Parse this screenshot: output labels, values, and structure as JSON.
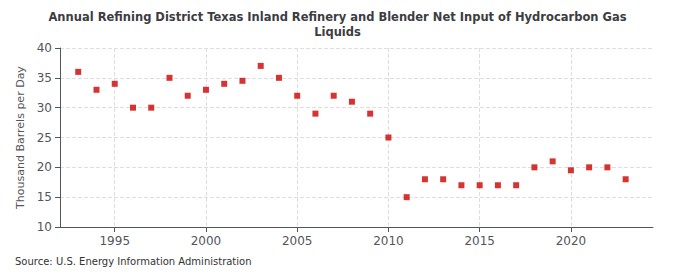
{
  "chart_data": {
    "type": "scatter",
    "title": "Annual Refining District Texas Inland Refinery and Blender Net Input of Hydrocarbon Gas\nLiquids",
    "ylabel": "Thousand Barrels per Day",
    "source": "Source: U.S. Energy Information Administration",
    "x": [
      1993,
      1994,
      1995,
      1996,
      1997,
      1998,
      1999,
      2000,
      2001,
      2002,
      2003,
      2004,
      2005,
      2006,
      2007,
      2008,
      2009,
      2010,
      2011,
      2012,
      2013,
      2014,
      2015,
      2016,
      2017,
      2018,
      2019,
      2020,
      2021,
      2022,
      2023
    ],
    "values": [
      36.0,
      33.0,
      34.0,
      30.0,
      30.0,
      35.0,
      32.0,
      33.0,
      34.0,
      34.5,
      37.0,
      35.0,
      32.0,
      29.0,
      32.0,
      31.0,
      29.0,
      25.0,
      15.0,
      18.0,
      18.0,
      17.0,
      17.0,
      17.0,
      17.0,
      20.0,
      21.0,
      19.5,
      20.0,
      20.0,
      18.0
    ],
    "color": "#cc0000",
    "marker": "square",
    "xlim": [
      1992.0,
      2024.5
    ],
    "xticks": [
      1995,
      2000,
      2005,
      2010,
      2015,
      2020
    ],
    "ylim": [
      10,
      40
    ],
    "yticks": [
      10,
      15,
      20,
      25,
      30,
      35,
      40
    ],
    "grid": true
  }
}
